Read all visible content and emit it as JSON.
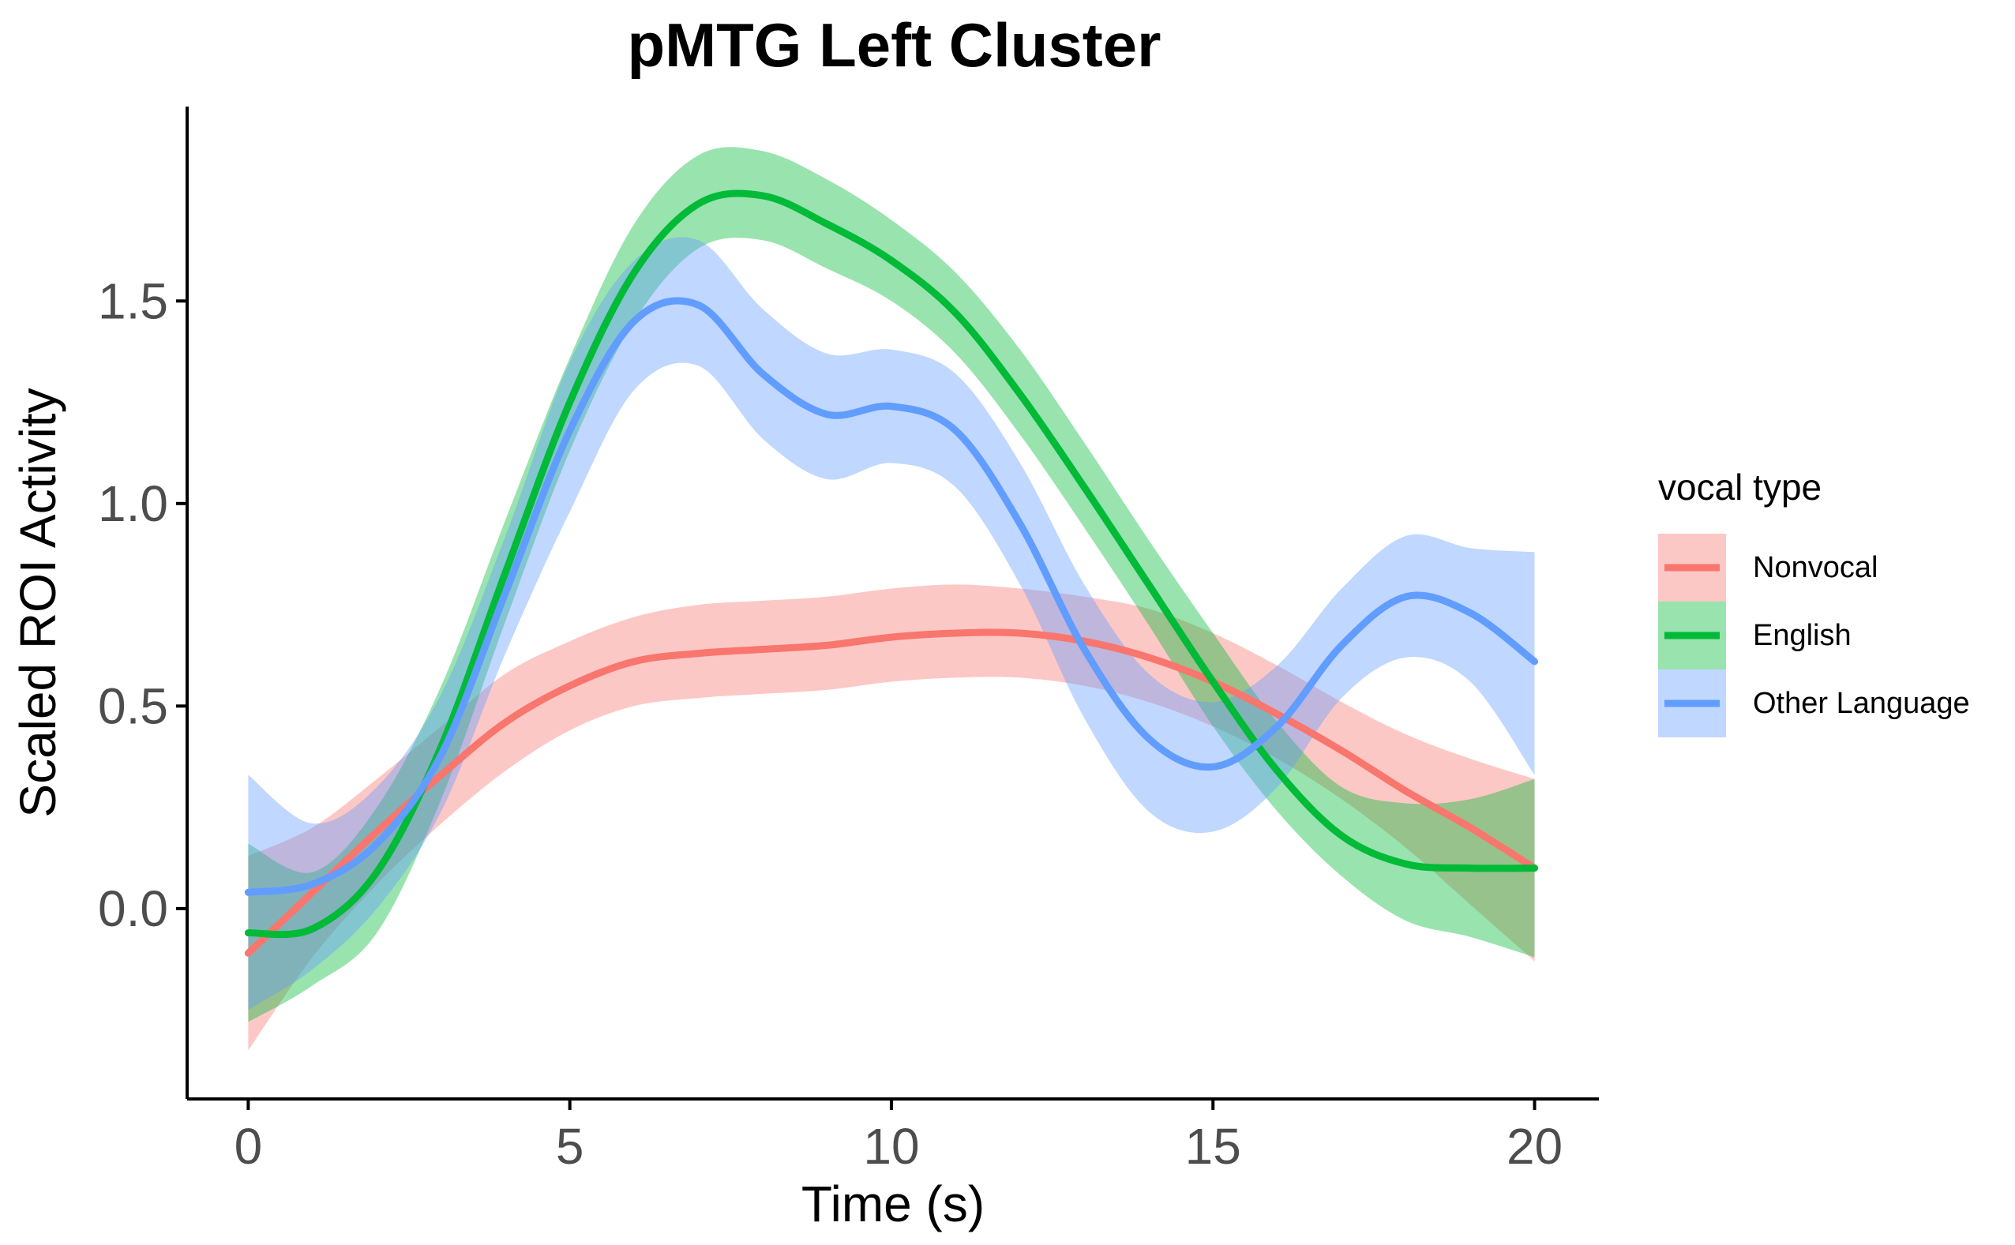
{
  "chart_data": {
    "type": "line",
    "title": "pMTG Left Cluster",
    "xlabel": "Time (s)",
    "ylabel": "Scaled ROI Activity",
    "xlim": [
      -0.95,
      21
    ],
    "ylim": [
      -0.47,
      1.98
    ],
    "x_ticks": [
      0,
      5,
      10,
      15,
      20
    ],
    "x_tick_labels": [
      "0",
      "5",
      "10",
      "15",
      "20"
    ],
    "y_ticks": [
      0.0,
      0.5,
      1.0,
      1.5
    ],
    "y_tick_labels": [
      "0.0",
      "0.5",
      "1.0",
      "1.5"
    ],
    "grid": false,
    "legend": {
      "title": "vocal type",
      "position": "right",
      "entries": [
        "Nonvocal",
        "English",
        "Other Language"
      ]
    },
    "series": [
      {
        "name": "Nonvocal",
        "color": "#F8766D",
        "x": [
          0,
          1,
          2,
          3,
          4,
          5,
          6,
          7,
          8,
          9,
          10,
          11,
          12,
          13,
          14,
          15,
          16,
          17,
          18,
          19,
          20
        ],
        "y": [
          -0.11,
          0.04,
          0.19,
          0.33,
          0.46,
          0.55,
          0.61,
          0.63,
          0.64,
          0.65,
          0.67,
          0.68,
          0.68,
          0.66,
          0.62,
          0.56,
          0.48,
          0.39,
          0.29,
          0.2,
          0.1
        ],
        "lower": [
          -0.35,
          -0.12,
          0.06,
          0.21,
          0.34,
          0.44,
          0.5,
          0.52,
          0.53,
          0.54,
          0.56,
          0.57,
          0.57,
          0.55,
          0.51,
          0.45,
          0.37,
          0.27,
          0.15,
          0.01,
          -0.13
        ],
        "upper": [
          0.13,
          0.2,
          0.32,
          0.45,
          0.58,
          0.66,
          0.72,
          0.75,
          0.76,
          0.77,
          0.79,
          0.8,
          0.79,
          0.77,
          0.74,
          0.68,
          0.6,
          0.51,
          0.43,
          0.37,
          0.32
        ]
      },
      {
        "name": "English",
        "color": "#00BA38",
        "x": [
          0,
          1,
          2,
          3,
          4,
          5,
          6,
          7,
          8,
          9,
          10,
          11,
          12,
          13,
          14,
          15,
          16,
          17,
          18,
          19,
          20
        ],
        "y": [
          -0.06,
          -0.05,
          0.09,
          0.4,
          0.83,
          1.25,
          1.57,
          1.74,
          1.76,
          1.69,
          1.6,
          1.47,
          1.27,
          1.04,
          0.8,
          0.56,
          0.34,
          0.18,
          0.11,
          0.1,
          0.1
        ],
        "lower": [
          -0.28,
          -0.19,
          -0.06,
          0.27,
          0.71,
          1.13,
          1.45,
          1.63,
          1.65,
          1.58,
          1.5,
          1.37,
          1.17,
          0.94,
          0.7,
          0.45,
          0.24,
          0.08,
          -0.03,
          -0.07,
          -0.12
        ],
        "upper": [
          0.16,
          0.09,
          0.25,
          0.55,
          0.96,
          1.36,
          1.69,
          1.86,
          1.87,
          1.8,
          1.7,
          1.57,
          1.38,
          1.15,
          0.91,
          0.68,
          0.46,
          0.3,
          0.26,
          0.27,
          0.32
        ]
      },
      {
        "name": "Other Language",
        "color": "#619CFF",
        "x": [
          0,
          1,
          2,
          3,
          4,
          5,
          6,
          7,
          8,
          9,
          10,
          11,
          12,
          13,
          14,
          15,
          16,
          17,
          18,
          19,
          20
        ],
        "y": [
          0.04,
          0.06,
          0.16,
          0.38,
          0.78,
          1.18,
          1.45,
          1.49,
          1.32,
          1.22,
          1.24,
          1.18,
          0.95,
          0.64,
          0.42,
          0.35,
          0.45,
          0.65,
          0.77,
          0.73,
          0.61
        ],
        "lower": [
          -0.25,
          -0.15,
          0.0,
          0.24,
          0.63,
          0.98,
          1.28,
          1.34,
          1.16,
          1.06,
          1.1,
          1.04,
          0.8,
          0.47,
          0.24,
          0.19,
          0.3,
          0.52,
          0.62,
          0.56,
          0.33
        ],
        "upper": [
          0.33,
          0.21,
          0.3,
          0.53,
          0.92,
          1.35,
          1.6,
          1.65,
          1.48,
          1.37,
          1.38,
          1.32,
          1.1,
          0.8,
          0.58,
          0.51,
          0.6,
          0.79,
          0.92,
          0.89,
          0.88
        ]
      }
    ]
  }
}
